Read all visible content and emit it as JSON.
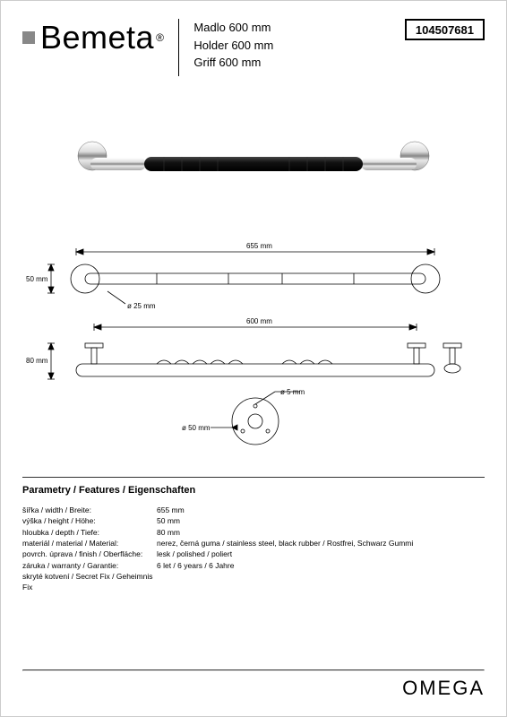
{
  "brand": "Bemeta",
  "product_code": "104507681",
  "titles": {
    "cz": "Madlo 600 mm",
    "en": "Holder 600 mm",
    "de": "Griff 600 mm"
  },
  "series": "OMEGA",
  "drawings": {
    "front": {
      "overall_width_label": "655 mm",
      "height_label": "50 mm",
      "diameter_label": "ø 25 mm"
    },
    "top": {
      "width_label": "600 mm",
      "depth_label": "80 mm"
    },
    "mount": {
      "hole_dia_label": "ø 5 mm",
      "flange_dia_label": "ø 50 mm"
    }
  },
  "specs": {
    "heading": "Parametry / Features / Eigenschaften",
    "rows": [
      {
        "label": "šířka / width / Breite:",
        "value": "655 mm"
      },
      {
        "label": "výška / height / Höhe:",
        "value": "50 mm"
      },
      {
        "label": "hloubka / depth / Tiefe:",
        "value": "80 mm"
      },
      {
        "label": "materiál / material / Material:",
        "value": "nerez, černá guma / stainless steel, black rubber / Rostfrei, Schwarz Gummi"
      },
      {
        "label": "povrch. úprava / finish / Oberfläche:",
        "value": "lesk / polished / poliert"
      },
      {
        "label": "záruka / warranty / Garantie:",
        "value": "6 let / 6 years / 6 Jahre"
      },
      {
        "label": "skryté kotvení / Secret Fix / Geheimnis Fix",
        "value": ""
      }
    ]
  },
  "colors": {
    "chrome_light": "#f2f2f2",
    "chrome_mid": "#b8b8b8",
    "chrome_dark": "#555",
    "rubber": "#111",
    "line": "#000"
  }
}
